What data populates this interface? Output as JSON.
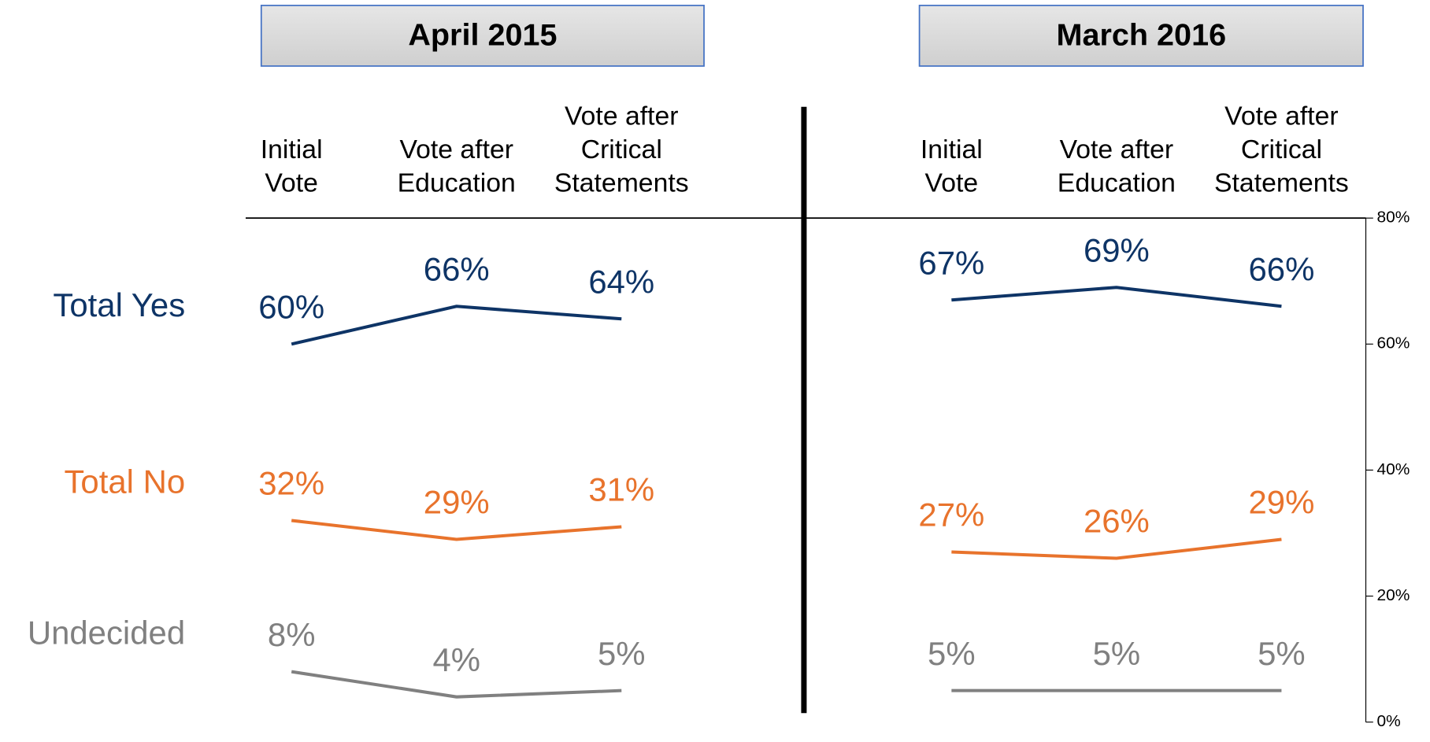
{
  "chart_data": [
    {
      "type": "line",
      "title": "April 2015",
      "categories": [
        "Initial\nVote",
        "Vote after\nEducation",
        "Vote after\nCritical\nStatements"
      ],
      "ylim": [
        0,
        80
      ],
      "series": [
        {
          "name": "Total Yes",
          "color": "#0e3466",
          "values": [
            60,
            66,
            64
          ],
          "value_labels": [
            "60%",
            "66%",
            "64%"
          ]
        },
        {
          "name": "Total No",
          "color": "#e8732c",
          "values": [
            32,
            29,
            31
          ],
          "value_labels": [
            "32%",
            "29%",
            "31%"
          ]
        },
        {
          "name": "Undecided",
          "color": "#808080",
          "values": [
            8,
            4,
            5
          ],
          "value_labels": [
            "8%",
            "4%",
            "5%"
          ]
        }
      ]
    },
    {
      "type": "line",
      "title": "March 2016",
      "categories": [
        "Initial\nVote",
        "Vote after\nEducation",
        "Vote after\nCritical\nStatements"
      ],
      "ylim": [
        0,
        80
      ],
      "yticks": [
        {
          "value": 0,
          "label": "0%"
        },
        {
          "value": 20,
          "label": "20%"
        },
        {
          "value": 40,
          "label": "40%"
        },
        {
          "value": 60,
          "label": "60%"
        },
        {
          "value": 80,
          "label": "80%"
        }
      ],
      "series": [
        {
          "color": "#0e3466",
          "values": [
            67,
            69,
            66
          ],
          "value_labels": [
            "67%",
            "69%",
            "66%"
          ]
        },
        {
          "color": "#e8732c",
          "values": [
            27,
            26,
            29
          ],
          "value_labels": [
            "27%",
            "26%",
            "29%"
          ]
        },
        {
          "color": "#808080",
          "values": [
            5,
            5,
            5
          ],
          "value_labels": [
            "5%",
            "5%",
            "5%"
          ]
        }
      ]
    }
  ]
}
